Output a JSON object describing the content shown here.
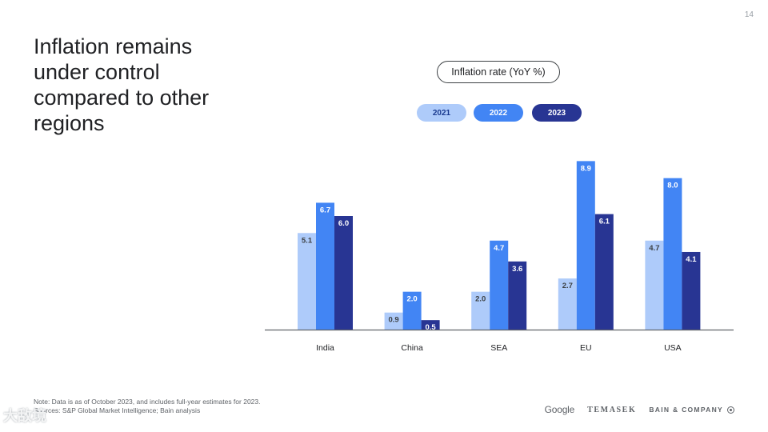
{
  "page": {
    "number": "14"
  },
  "slide": {
    "title": "Inflation remains under control compared to other regions"
  },
  "chart_label": "Inflation rate (YoY %)",
  "chart_data": {
    "type": "bar",
    "title": "Inflation rate (YoY %)",
    "categories": [
      "India",
      "China",
      "SEA",
      "EU",
      "USA"
    ],
    "series": [
      {
        "name": "2021",
        "values": [
          5.1,
          0.9,
          2.0,
          2.7,
          4.7
        ],
        "color": "#aecbfa",
        "label_color": "#3c4043"
      },
      {
        "name": "2022",
        "values": [
          6.7,
          2.0,
          4.7,
          8.9,
          8.0
        ],
        "color": "#4285f4",
        "label_color": "#ffffff"
      },
      {
        "name": "2023",
        "values": [
          6.0,
          0.5,
          3.6,
          6.1,
          4.1
        ],
        "color": "#283593",
        "label_color": "#ffffff"
      }
    ],
    "ylim": [
      0,
      9
    ],
    "legend": "top-center",
    "grid": false,
    "xlabel": "",
    "ylabel": ""
  },
  "footnote": {
    "note": "Note: Data is as of October 2023, and includes full-year estimates for 2023.",
    "sources": "Sources: S&P Global Market Intelligence; Bain analysis"
  },
  "logos": {
    "google": "Google",
    "temasek": "TEMASEK",
    "bain": "BAIN & COMPANY"
  },
  "watermark": "大敌境"
}
